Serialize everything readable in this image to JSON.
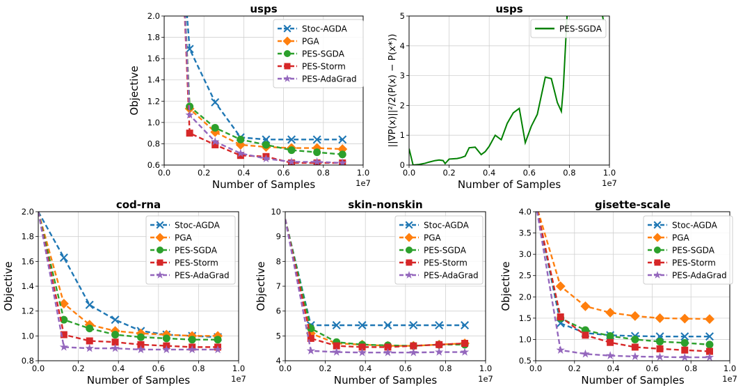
{
  "chart_data": [
    {
      "type": "line",
      "title": "usps",
      "xlabel": "Number of Samples",
      "ylabel": "Objective",
      "x_exponent": "1e7",
      "xlim": [
        0,
        10000000
      ],
      "ylim": [
        0.6,
        2.0
      ],
      "xticks": [
        "0.0",
        "0.2",
        "0.4",
        "0.6",
        "0.8",
        "1.0"
      ],
      "yticks": [
        "0.6",
        "0.8",
        "1.0",
        "1.2",
        "1.4",
        "1.6",
        "1.8",
        "2.0"
      ],
      "grid": true,
      "legend_position": "top-right",
      "x": [
        900000,
        1280000,
        2560000,
        3840000,
        5120000,
        6400000,
        7680000,
        8960000
      ],
      "series": [
        {
          "name": "Stoc-AGDA",
          "color": "#1f77b4",
          "marker": "x",
          "values": [
            2.6,
            1.69,
            1.19,
            0.86,
            0.84,
            0.84,
            0.84,
            0.84
          ]
        },
        {
          "name": "PGA",
          "color": "#ff7f0e",
          "marker": "diamond",
          "values": [
            2.6,
            1.13,
            0.91,
            0.79,
            0.77,
            0.76,
            0.76,
            0.75
          ]
        },
        {
          "name": "PES-SGDA",
          "color": "#2ca02c",
          "marker": "circle",
          "values": [
            2.6,
            1.15,
            0.95,
            0.84,
            0.79,
            0.74,
            0.72,
            0.7
          ]
        },
        {
          "name": "PES-Storm",
          "color": "#d62728",
          "marker": "square",
          "values": [
            2.6,
            0.9,
            0.79,
            0.69,
            0.68,
            0.62,
            0.62,
            0.62
          ]
        },
        {
          "name": "PES-AdaGrad",
          "color": "#9467bd",
          "marker": "star",
          "values": [
            2.6,
            1.07,
            0.82,
            0.71,
            0.66,
            0.63,
            0.63,
            0.62
          ]
        }
      ]
    },
    {
      "type": "line",
      "title": "usps",
      "xlabel": "Number of Samples",
      "ylabel": "||∇P(x)||²/2(P(x) − P(x*))",
      "x_exponent": "1e7",
      "xlim": [
        0,
        10000000
      ],
      "ylim": [
        0,
        5
      ],
      "xticks": [
        "0.0",
        "0.2",
        "0.4",
        "0.6",
        "0.8",
        "1.0"
      ],
      "yticks": [
        "0",
        "1",
        "2",
        "3",
        "4",
        "5"
      ],
      "grid": true,
      "legend_position": "top-right",
      "series": [
        {
          "name": "PES-SGDA",
          "color": "#008000",
          "x": [
            0,
            200000,
            500000,
            800000,
            1000000,
            1300000,
            1500000,
            1700000,
            1800000,
            2000000,
            2400000,
            2600000,
            2800000,
            3000000,
            3300000,
            3600000,
            3800000,
            4000000,
            4300000,
            4600000,
            4900000,
            5200000,
            5500000,
            5800000,
            6100000,
            6400000,
            6800000,
            7100000,
            7400000,
            7600000,
            7700000,
            7900000,
            9600000,
            9700000
          ],
          "values": [
            0.55,
            0.0,
            0.02,
            0.06,
            0.1,
            0.15,
            0.17,
            0.15,
            0.05,
            0.2,
            0.22,
            0.25,
            0.3,
            0.58,
            0.6,
            0.35,
            0.45,
            0.63,
            1.0,
            0.85,
            1.4,
            1.75,
            1.9,
            0.75,
            1.3,
            1.7,
            2.95,
            2.9,
            2.1,
            1.8,
            2.6,
            5.2,
            5.2,
            4.85
          ]
        }
      ]
    },
    {
      "type": "line",
      "title": "cod-rna",
      "xlabel": "Number of Samples",
      "ylabel": "Objective",
      "x_exponent": "1e7",
      "xlim": [
        0,
        10000000
      ],
      "ylim": [
        0.8,
        2.0
      ],
      "xticks": [
        "0.0",
        "0.2",
        "0.4",
        "0.6",
        "0.8",
        "1.0"
      ],
      "yticks": [
        "0.8",
        "1.0",
        "1.2",
        "1.4",
        "1.6",
        "1.8",
        "2.0"
      ],
      "grid": true,
      "legend_position": "top-right",
      "x": [
        0,
        1280000,
        2560000,
        3840000,
        5120000,
        6400000,
        7680000,
        8960000
      ],
      "series": [
        {
          "name": "Stoc-AGDA",
          "color": "#1f77b4",
          "marker": "x",
          "values": [
            2.0,
            1.63,
            1.25,
            1.13,
            1.04,
            1.01,
            1.0,
            0.99
          ]
        },
        {
          "name": "PGA",
          "color": "#ff7f0e",
          "marker": "diamond",
          "values": [
            2.0,
            1.26,
            1.09,
            1.04,
            1.02,
            1.01,
            1.0,
            1.0
          ]
        },
        {
          "name": "PES-SGDA",
          "color": "#2ca02c",
          "marker": "circle",
          "values": [
            2.0,
            1.13,
            1.06,
            1.01,
            0.99,
            0.98,
            0.97,
            0.97
          ]
        },
        {
          "name": "PES-Storm",
          "color": "#d62728",
          "marker": "square",
          "values": [
            2.0,
            1.01,
            0.96,
            0.95,
            0.93,
            0.92,
            0.91,
            0.91
          ]
        },
        {
          "name": "PES-AdaGrad",
          "color": "#9467bd",
          "marker": "star",
          "values": [
            2.0,
            0.91,
            0.9,
            0.9,
            0.89,
            0.89,
            0.89,
            0.89
          ]
        }
      ]
    },
    {
      "type": "line",
      "title": "skin-nonskin",
      "xlabel": "Number of Samples",
      "ylabel": "Objective",
      "x_exponent": "1e7",
      "xlim": [
        0,
        10000000
      ],
      "ylim": [
        4,
        10
      ],
      "xticks": [
        "0.0",
        "0.2",
        "0.4",
        "0.6",
        "0.8",
        "1.0"
      ],
      "yticks": [
        "4",
        "5",
        "6",
        "7",
        "8",
        "9",
        "10"
      ],
      "grid": true,
      "legend_position": "top-right",
      "x": [
        0,
        1280000,
        2560000,
        3840000,
        5120000,
        6400000,
        7680000,
        8960000
      ],
      "series": [
        {
          "name": "Stoc-AGDA",
          "color": "#1f77b4",
          "marker": "x",
          "values": [
            9.7,
            5.43,
            5.43,
            5.43,
            5.43,
            5.43,
            5.43,
            5.43
          ]
        },
        {
          "name": "PGA",
          "color": "#ff7f0e",
          "marker": "diamond",
          "values": [
            9.7,
            5.1,
            4.7,
            4.65,
            4.6,
            4.6,
            4.65,
            4.7
          ]
        },
        {
          "name": "PES-SGDA",
          "color": "#2ca02c",
          "marker": "circle",
          "values": [
            9.7,
            5.3,
            4.75,
            4.65,
            4.62,
            4.6,
            4.65,
            4.65
          ]
        },
        {
          "name": "PES-Storm",
          "color": "#d62728",
          "marker": "square",
          "values": [
            9.7,
            4.9,
            4.6,
            4.55,
            4.55,
            4.6,
            4.65,
            4.7
          ]
        },
        {
          "name": "PES-AdaGrad",
          "color": "#9467bd",
          "marker": "star",
          "values": [
            9.7,
            4.4,
            4.35,
            4.33,
            4.33,
            4.33,
            4.35,
            4.35
          ]
        }
      ]
    },
    {
      "type": "line",
      "title": "gisette-scale",
      "xlabel": "Number of Samples",
      "ylabel": "Objective",
      "x_exponent": "1e7",
      "xlim": [
        0,
        10000000
      ],
      "ylim": [
        0.5,
        4.0
      ],
      "xticks": [
        "0.0",
        "0.2",
        "0.4",
        "0.6",
        "0.8",
        "1.0"
      ],
      "yticks": [
        "0.5",
        "1.0",
        "1.5",
        "2.0",
        "2.5",
        "3.0",
        "3.5",
        "4.0"
      ],
      "grid": true,
      "legend_position": "top-right",
      "x": [
        0,
        1280000,
        2560000,
        3840000,
        5120000,
        6400000,
        7680000,
        8960000
      ],
      "series": [
        {
          "name": "Stoc-AGDA",
          "color": "#1f77b4",
          "marker": "x",
          "values": [
            4.2,
            1.38,
            1.15,
            1.1,
            1.08,
            1.07,
            1.07,
            1.07
          ]
        },
        {
          "name": "PGA",
          "color": "#ff7f0e",
          "marker": "diamond",
          "values": [
            4.2,
            2.25,
            1.78,
            1.63,
            1.55,
            1.5,
            1.49,
            1.48
          ]
        },
        {
          "name": "PES-SGDA",
          "color": "#2ca02c",
          "marker": "circle",
          "values": [
            4.2,
            1.5,
            1.22,
            1.08,
            1.0,
            0.95,
            0.92,
            0.88
          ]
        },
        {
          "name": "PES-Storm",
          "color": "#d62728",
          "marker": "square",
          "values": [
            4.2,
            1.53,
            1.1,
            0.93,
            0.82,
            0.78,
            0.75,
            0.72
          ]
        },
        {
          "name": "PES-AdaGrad",
          "color": "#9467bd",
          "marker": "star",
          "values": [
            4.2,
            0.75,
            0.66,
            0.62,
            0.6,
            0.59,
            0.58,
            0.58
          ]
        }
      ]
    }
  ]
}
